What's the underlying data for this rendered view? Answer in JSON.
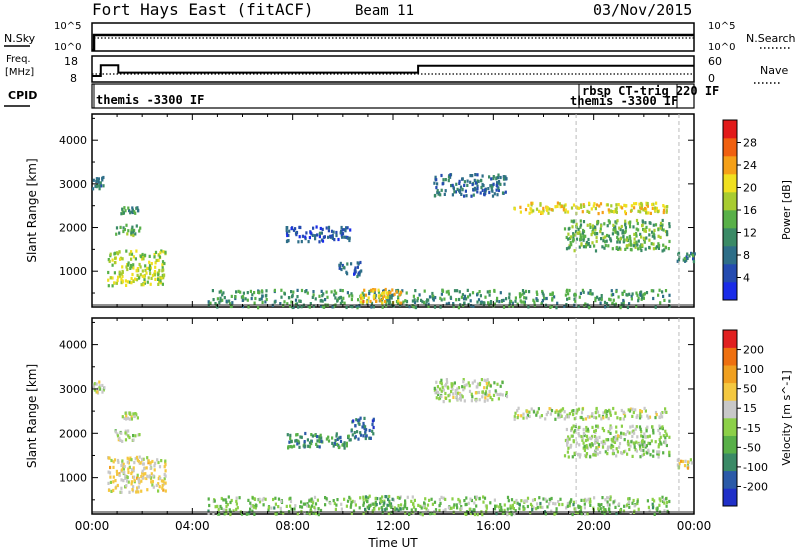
{
  "header": {
    "title": "Fort Hays East (fitACF)",
    "beam": "Beam 11",
    "date": "03/Nov/2015"
  },
  "info_panels": {
    "nsky": {
      "label": "N.Sky",
      "right_label": "N.Search",
      "ytick_top": "10^5",
      "ytick_bottom": "10^0"
    },
    "freq": {
      "label_line1": "Freq.",
      "label_line2": "[MHz]",
      "left_ticks": [
        "18",
        "8"
      ],
      "right_ticks": [
        "60",
        "0"
      ],
      "right_label": "Nave",
      "freq_steps": [
        {
          "t0": 0.0,
          "t1": 0.35,
          "mhz": 10.5
        },
        {
          "t0": 0.35,
          "t1": 1.05,
          "mhz": 15.0
        },
        {
          "t0": 1.05,
          "t1": 13.0,
          "mhz": 11.9
        },
        {
          "t0": 13.0,
          "t1": 24.0,
          "mhz": 14.8
        }
      ]
    },
    "cpid": {
      "label": "CPID",
      "modes": [
        "themis -3300 IF",
        "rbsp CT-trig 220 IF",
        "themis -3300 IF"
      ]
    }
  },
  "chart_data": [
    {
      "type": "heatmap",
      "name": "power",
      "ylabel": "Slant Range [km]",
      "ylim": [
        180,
        4600
      ],
      "yticks": [
        "1000",
        "2000",
        "3000",
        "4000"
      ],
      "xlim": [
        0,
        24
      ],
      "colorbar": {
        "label": "Power [dB]",
        "range": [
          0,
          32
        ],
        "ticks": [
          "4",
          "8",
          "12",
          "16",
          "20",
          "24",
          "28"
        ],
        "colors": [
          "#1a2ce8",
          "#244bb0",
          "#2e6e88",
          "#3a8a66",
          "#58b048",
          "#a8cc30",
          "#f0e020",
          "#f5a018",
          "#f06010",
          "#e21a1a"
        ]
      },
      "regions": [
        {
          "t": [
            0.0,
            0.45
          ],
          "r": [
            2900,
            3200
          ],
          "v": 9
        },
        {
          "t": [
            0.6,
            2.9
          ],
          "r": [
            700,
            1500
          ],
          "v": 18
        },
        {
          "t": [
            0.9,
            1.9
          ],
          "r": [
            1850,
            2100
          ],
          "v": 14
        },
        {
          "t": [
            1.1,
            1.8
          ],
          "r": [
            2350,
            2500
          ],
          "v": 12
        },
        {
          "t": [
            7.7,
            10.3
          ],
          "r": [
            1700,
            2050
          ],
          "v": 6
        },
        {
          "t": [
            9.8,
            10.7
          ],
          "r": [
            900,
            1250
          ],
          "v": 7
        },
        {
          "t": [
            13.6,
            16.5
          ],
          "r": [
            2750,
            3250
          ],
          "v": 8
        },
        {
          "t": [
            16.8,
            23.0
          ],
          "r": [
            2350,
            2600
          ],
          "v": 20
        },
        {
          "t": [
            18.8,
            23.0
          ],
          "r": [
            1500,
            2200
          ],
          "v": 14
        },
        {
          "t": [
            23.3,
            24.0
          ],
          "r": [
            1250,
            1450
          ],
          "v": 10
        },
        {
          "t": [
            4.6,
            23.0
          ],
          "r": [
            200,
            600
          ],
          "v": 12
        },
        {
          "t": [
            10.6,
            12.3
          ],
          "r": [
            300,
            620
          ],
          "v": 22
        }
      ]
    },
    {
      "type": "heatmap",
      "name": "velocity",
      "ylabel": "Slant Range [km]",
      "xlabel": "Time UT",
      "ylim": [
        180,
        4600
      ],
      "yticks": [
        "1000",
        "2000",
        "3000",
        "4000"
      ],
      "xlim": [
        0,
        24
      ],
      "xticks": [
        "00:00",
        "04:00",
        "08:00",
        "12:00",
        "16:00",
        "20:00",
        "00:00"
      ],
      "colorbar": {
        "label": "Velocity [m s^-1]",
        "range": [
          -250,
          250
        ],
        "ticks": [
          "200",
          "100",
          "50",
          "15",
          "-15",
          "-50",
          "-100",
          "-200"
        ],
        "colors": [
          "#2030c8",
          "#2b5aa8",
          "#3a8a66",
          "#58b048",
          "#8cd048",
          "#c8c8c8",
          "#f4c840",
          "#f0a020",
          "#ee7010",
          "#e02020"
        ]
      },
      "regions": [
        {
          "t": [
            0.0,
            0.45
          ],
          "r": [
            2900,
            3200
          ],
          "v": 0
        },
        {
          "t": [
            0.6,
            2.9
          ],
          "r": [
            700,
            1500
          ],
          "v": 45
        },
        {
          "t": [
            0.9,
            1.9
          ],
          "r": [
            1850,
            2100
          ],
          "v": 0
        },
        {
          "t": [
            1.1,
            1.8
          ],
          "r": [
            2350,
            2500
          ],
          "v": 0
        },
        {
          "t": [
            7.7,
            10.3
          ],
          "r": [
            1700,
            2050
          ],
          "v": -120
        },
        {
          "t": [
            10.2,
            11.2
          ],
          "r": [
            1900,
            2400
          ],
          "v": -160
        },
        {
          "t": [
            13.6,
            16.5
          ],
          "r": [
            2750,
            3250
          ],
          "v": 0
        },
        {
          "t": [
            16.8,
            23.0
          ],
          "r": [
            2350,
            2600
          ],
          "v": 0
        },
        {
          "t": [
            18.8,
            23.0
          ],
          "r": [
            1500,
            2200
          ],
          "v": -10
        },
        {
          "t": [
            23.3,
            24.0
          ],
          "r": [
            1250,
            1450
          ],
          "v": 40
        },
        {
          "t": [
            4.6,
            23.0
          ],
          "r": [
            200,
            600
          ],
          "v": -40
        },
        {
          "t": [
            10.6,
            12.3
          ],
          "r": [
            300,
            620
          ],
          "v": -80
        }
      ]
    }
  ]
}
